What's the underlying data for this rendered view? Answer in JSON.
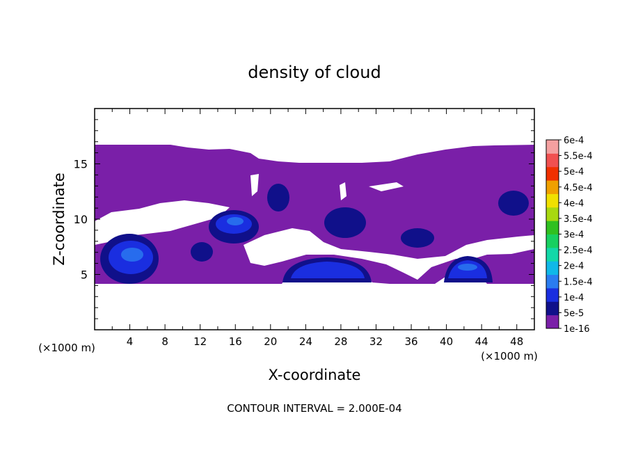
{
  "chart_data": {
    "type": "contour",
    "title": "density of cloud",
    "xlabel": "X-coordinate",
    "ylabel": "Z-coordinate",
    "x_unit_left": "(×1000 m)",
    "x_unit_right": "(×1000 m)",
    "xlim": [
      0,
      50
    ],
    "ylim": [
      0,
      20
    ],
    "x_ticks": [
      4,
      8,
      12,
      16,
      20,
      24,
      28,
      32,
      36,
      40,
      44,
      48
    ],
    "y_ticks": [
      5,
      10,
      15
    ],
    "contour_interval_text": "CONTOUR INTERVAL = 2.000E-04",
    "colorbar": {
      "levels": [
        "1e-16",
        "5e-5",
        "1e-4",
        "1.5e-4",
        "2e-4",
        "2.5e-4",
        "3e-4",
        "3.5e-4",
        "4e-4",
        "4.5e-4",
        "5e-4",
        "5.5e-4",
        "6e-4"
      ],
      "colors": [
        "#7a1fa8",
        "#10108a",
        "#1a2ee0",
        "#2a7cf0",
        "#10b8e8",
        "#12d8a8",
        "#18d060",
        "#30c020",
        "#a8d810",
        "#f0e000",
        "#f0a000",
        "#f03000",
        "#f05050",
        "#f4a0a0"
      ]
    },
    "cloud_region": {
      "x_range": [
        0,
        50
      ],
      "z_top_range": [
        15,
        16.8
      ],
      "z_bottom": 4.2,
      "fill_level": "1e-16"
    },
    "cores": [
      {
        "x": 5,
        "z": 6.3,
        "level": "1e-4"
      },
      {
        "x": 15.5,
        "z": 9.7,
        "level": "1e-4"
      },
      {
        "x": 25.5,
        "z": 5.0,
        "level": "1e-4"
      },
      {
        "x": 42.5,
        "z": 5.3,
        "level": "1e-4"
      }
    ]
  }
}
